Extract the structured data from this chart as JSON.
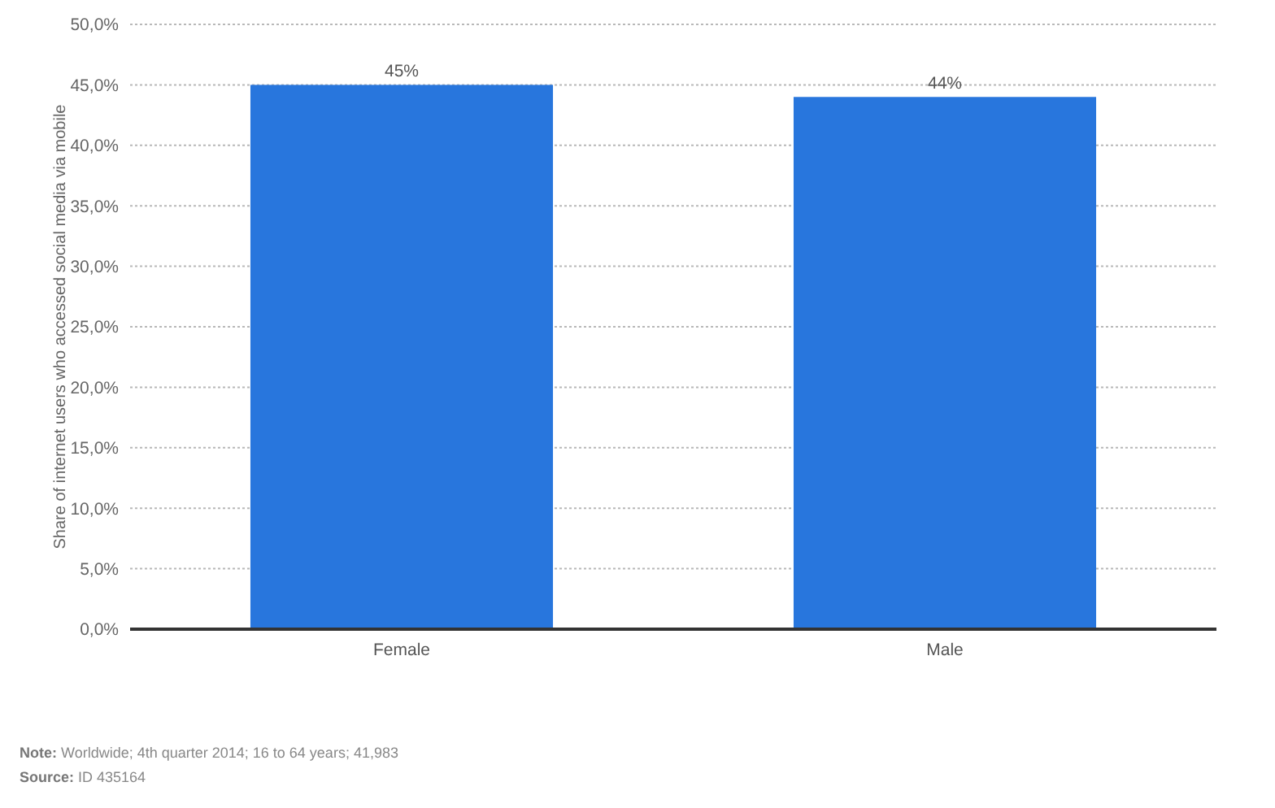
{
  "chart_data": {
    "type": "bar",
    "ylabel": "Share of internet users who accessed social media via mobile",
    "categories": [
      "Female",
      "Male"
    ],
    "values": [
      45,
      44
    ],
    "value_labels": [
      "45%",
      "44%"
    ],
    "color": "#2876dd",
    "ylim": [
      0,
      50
    ],
    "yticks": [
      {
        "value": 0,
        "label": "0,0%"
      },
      {
        "value": 5,
        "label": "5,0%"
      },
      {
        "value": 10,
        "label": "10,0%"
      },
      {
        "value": 15,
        "label": "15,0%"
      },
      {
        "value": 20,
        "label": "20,0%"
      },
      {
        "value": 25,
        "label": "25,0%"
      },
      {
        "value": 30,
        "label": "30,0%"
      },
      {
        "value": 35,
        "label": "35,0%"
      },
      {
        "value": 40,
        "label": "40,0%"
      },
      {
        "value": 45,
        "label": "45,0%"
      },
      {
        "value": 50,
        "label": "50,0%"
      }
    ],
    "grid": "y",
    "annotations": [
      "Note: Worldwide; 4th quarter 2014; 16 to 64 years; 41,983",
      "Source: ID 435164"
    ]
  }
}
